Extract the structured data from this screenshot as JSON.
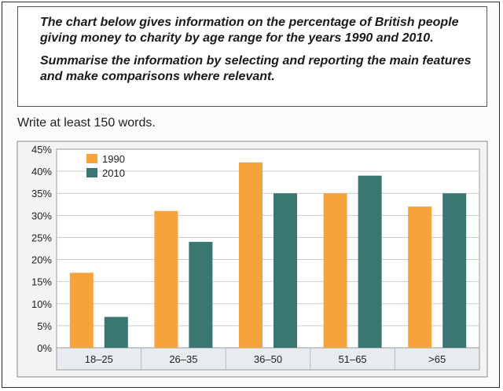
{
  "task": {
    "paragraph1": "The chart below gives information on the percentage of British people giving money to charity by age range for the years 1990 and 2010.",
    "paragraph2": "Summarise the information by selecting and reporting the main features and make comparisons where relevant.",
    "instruction": "Write at least 150 words."
  },
  "colors": {
    "series_1990": "#f7a33c",
    "series_2010": "#3a7672",
    "grid": "#cccccc",
    "plot_bg": "#ffffff",
    "axis_band": "#e8ecf0"
  },
  "chart_data": {
    "type": "bar",
    "title": "",
    "xlabel": "",
    "ylabel": "",
    "categories": [
      "18–25",
      "26–35",
      "36–50",
      "51–65",
      ">65"
    ],
    "series": [
      {
        "name": "1990",
        "values": [
          17,
          31,
          42,
          35,
          32
        ]
      },
      {
        "name": "2010",
        "values": [
          7,
          24,
          35,
          39,
          35
        ]
      }
    ],
    "ylim": [
      0,
      45
    ],
    "yticks": [
      "0%",
      "5%",
      "10%",
      "15%",
      "20%",
      "25%",
      "30%",
      "35%",
      "40%",
      "45%"
    ],
    "grid": true,
    "legend_position": "top-left"
  }
}
